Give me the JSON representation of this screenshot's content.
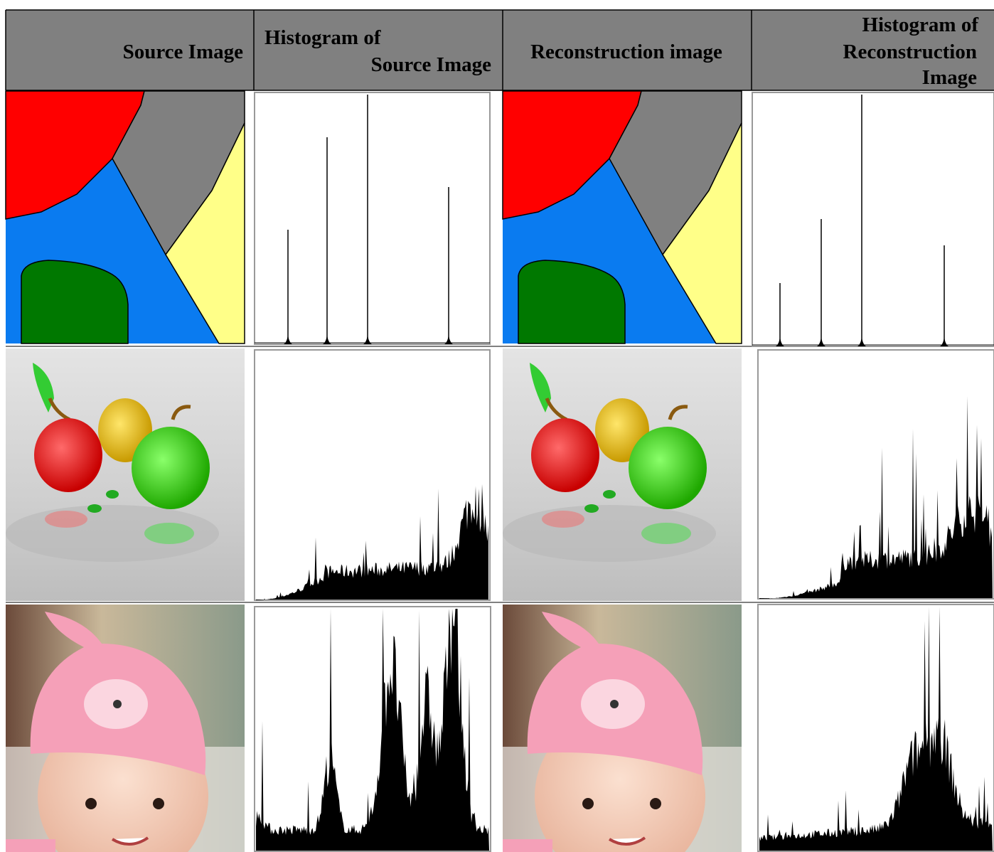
{
  "table": {
    "header": [
      "Source Image",
      "Histogram of Source Image",
      "Reconstruction image",
      "Histogram of Reconstruction Image"
    ]
  }
}
